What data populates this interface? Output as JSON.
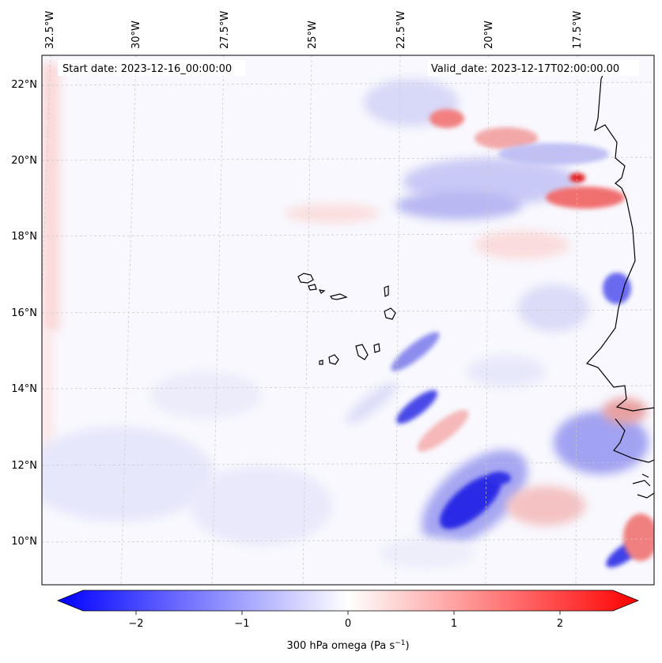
{
  "map": {
    "start_label": "Start date: 2023-12-16_00:00:00",
    "valid_label": "Valid_date: 2023-12-17T02:00:00.00",
    "lon_ticks": [
      "32.5°W",
      "30°W",
      "27.5°W",
      "25°W",
      "22.5°W",
      "20°W",
      "17.5°W"
    ],
    "lat_ticks": [
      "22°N",
      "20°N",
      "18°N",
      "16°N",
      "14°N",
      "12°N",
      "10°N"
    ],
    "field": "300 hPa omega"
  },
  "colorbar": {
    "ticks": [
      "−2",
      "−1",
      "0",
      "1",
      "2"
    ],
    "tick_values": [
      -2,
      -1,
      0,
      1,
      2
    ],
    "range": [
      -2.5,
      2.5
    ],
    "label": "300 hPa omega (Pa s",
    "label_exp": "−1",
    "label_end": ")",
    "colors": {
      "negative": "#0000ff",
      "zero": "#ffffff",
      "positive": "#ff0000"
    }
  }
}
